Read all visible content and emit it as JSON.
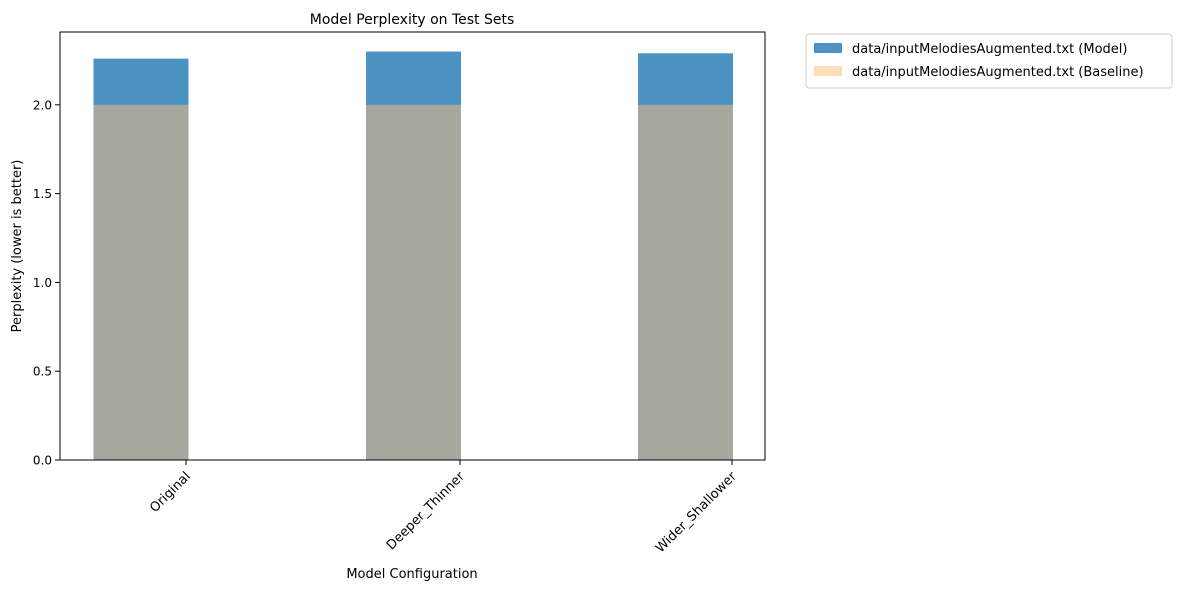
{
  "chart_data": {
    "type": "bar",
    "title": "Model Perplexity on Test Sets",
    "xlabel": "Model Configuration",
    "ylabel": "Perplexity (lower is better)",
    "categories": [
      "Original",
      "Deeper_Thinner",
      "Wider_Shallower"
    ],
    "series": [
      {
        "name": "data/inputMelodiesAugmented.txt (Model)",
        "values": [
          2.26,
          2.3,
          2.29
        ],
        "color": "#1f77b4",
        "opacity": 0.8
      },
      {
        "name": "data/inputMelodiesAugmented.txt (Baseline)",
        "values": [
          2.0,
          2.0,
          2.0
        ],
        "color": "#ffbb78",
        "opacity": 0.5
      }
    ],
    "ylim": [
      0,
      2.41
    ],
    "yticks": [
      "0.0",
      "0.5",
      "1.0",
      "1.5",
      "2.0"
    ],
    "legend": "outside-top-right",
    "grid": false
  }
}
